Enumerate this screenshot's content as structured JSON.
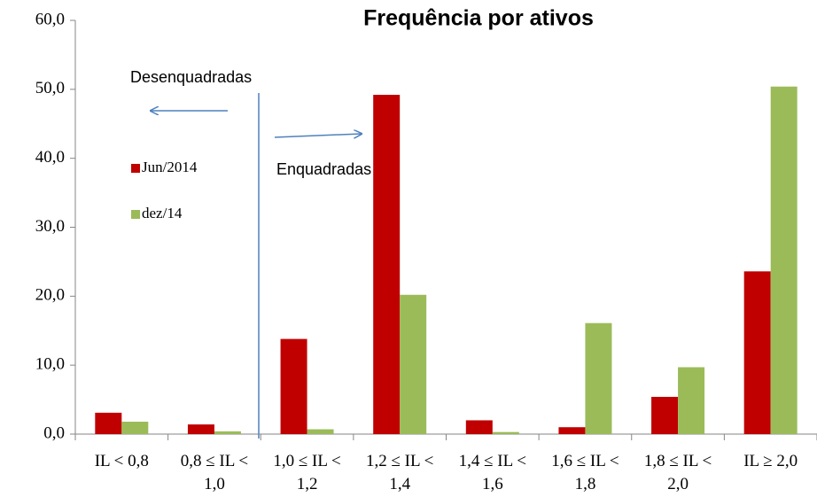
{
  "chart_data": {
    "type": "bar",
    "title": "Frequência por ativos",
    "categories": [
      "IL < 0,8",
      "0,8 ≤  IL <\n1,0",
      "1,0 ≤  IL <\n1,2",
      "1,2 ≤ IL <\n1,4",
      "1,4 ≤ IL <\n1,6",
      "1,6 ≤ IL <\n1,8",
      "1,8 ≤ IL <\n2,0",
      "IL ≥ 2,0"
    ],
    "series": [
      {
        "name": "Jun/2014",
        "color": "#c00000",
        "values": [
          3.1,
          1.4,
          13.8,
          49.2,
          2.0,
          1.0,
          5.4,
          23.6
        ]
      },
      {
        "name": "dez/14",
        "color": "#9bbb59",
        "values": [
          1.8,
          0.4,
          0.7,
          20.2,
          0.3,
          16.1,
          9.7,
          50.4
        ]
      }
    ],
    "ylim": [
      0,
      60
    ],
    "yticks": [
      {
        "value": 0,
        "label": "0,0"
      },
      {
        "value": 10,
        "label": "10,0"
      },
      {
        "value": 20,
        "label": "20,0"
      },
      {
        "value": 30,
        "label": "30,0"
      },
      {
        "value": 40,
        "label": "40,0"
      },
      {
        "value": 50,
        "label": "50,0"
      },
      {
        "value": 60,
        "label": "60,0"
      }
    ],
    "legend": "left",
    "annotations": [
      "Desenquadradas",
      "Enquadradas"
    ]
  }
}
